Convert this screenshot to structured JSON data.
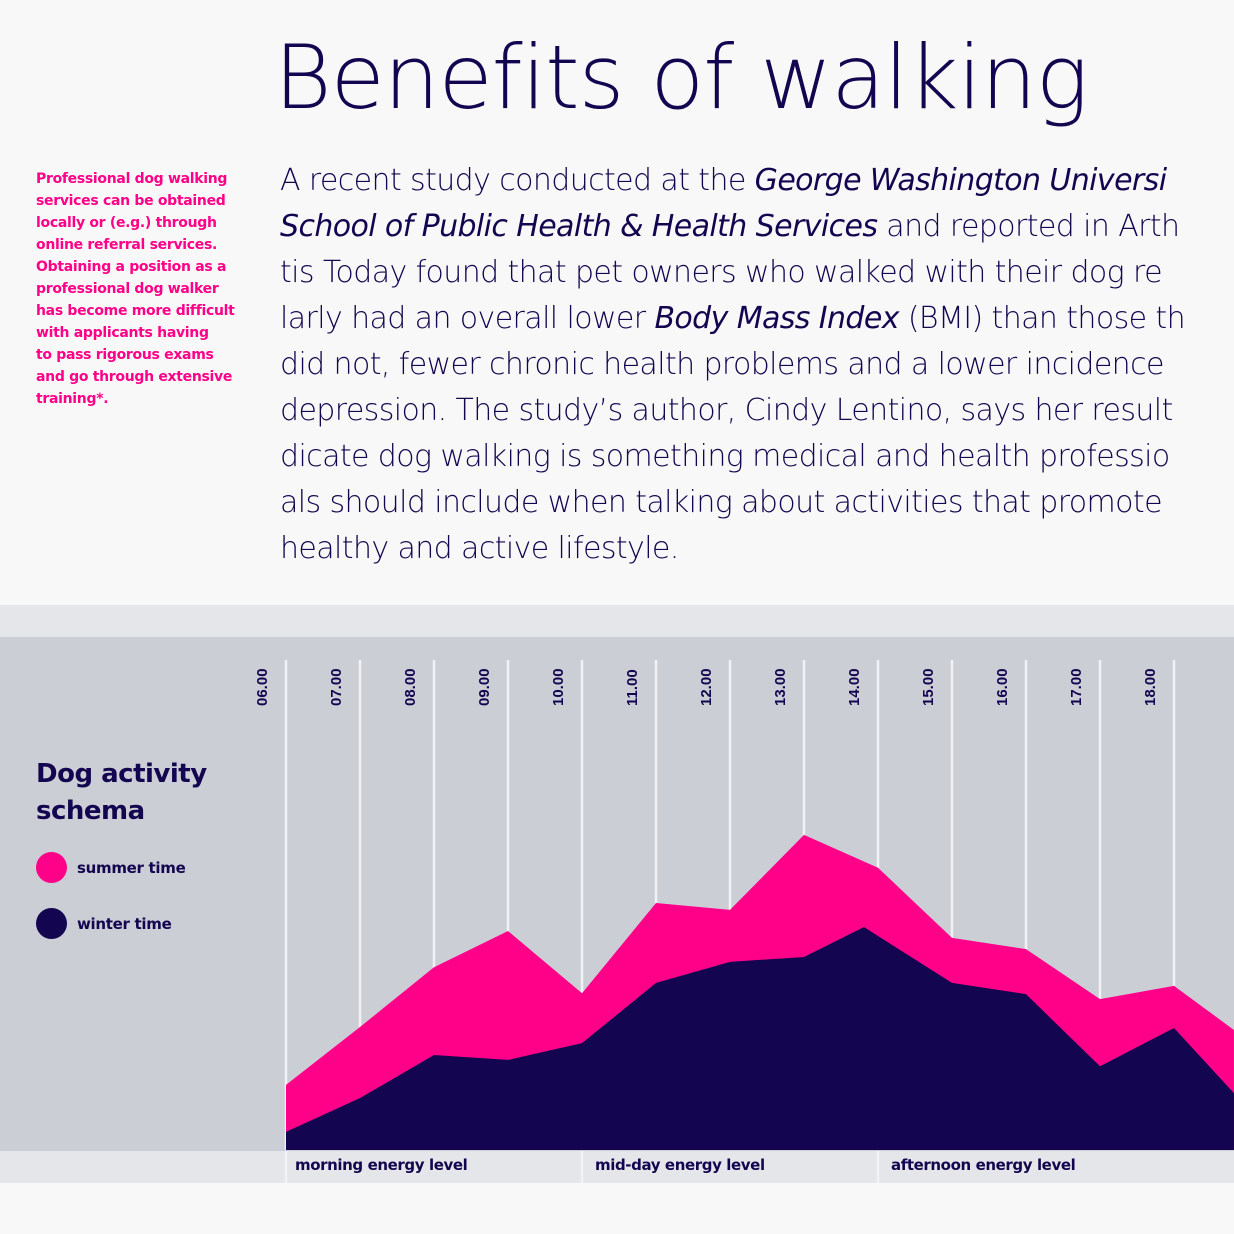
{
  "header": {
    "title": "Benefits of walking"
  },
  "sidenote": {
    "lines": [
      "Professional dog walking",
      "services can be obtained",
      "locally or (e.g.) through",
      "online referral services.",
      "Obtaining a position as a",
      "professional dog walker",
      "has become more difficult",
      "with applicants having",
      "to pass rigorous exams",
      "and go through extensive",
      "training*."
    ]
  },
  "article": {
    "lines": [
      [
        {
          "t": "A recent study conducted at the ",
          "i": false
        },
        {
          "t": "George Washington Universi",
          "i": true
        }
      ],
      [
        {
          "t": "School of Public Health & Health Services",
          "i": true
        },
        {
          "t": " and reported in Arth",
          "i": false
        }
      ],
      [
        {
          "t": "tis Today found that pet owners who walked with their dog re",
          "i": false
        }
      ],
      [
        {
          "t": "larly had an overall lower ",
          "i": false
        },
        {
          "t": "Body Mass Index",
          "i": true
        },
        {
          "t": " (BMI) than those th",
          "i": false
        }
      ],
      [
        {
          "t": "did not, fewer chronic health problems and a lower incidence",
          "i": false
        }
      ],
      [
        {
          "t": "depression. The study’s author, Cindy Lentino, says her result",
          "i": false
        }
      ],
      [
        {
          "t": "dicate dog walking is something medical and health professio",
          "i": false
        }
      ],
      [
        {
          "t": "als should include when talking about activities that promote",
          "i": false
        }
      ],
      [
        {
          "t": "healthy and active lifestyle.",
          "i": false
        }
      ]
    ]
  },
  "colors": {
    "summer": "#ff0088",
    "winter": "#13054f",
    "text": "#13054f",
    "accent": "#ff0088",
    "gridline": "#f2f2f4"
  },
  "chart_data": {
    "type": "area",
    "title": "Dog activity schema",
    "xlabel": "",
    "ylabel": "",
    "x_unit": "hour of day",
    "xlim": [
      6,
      18.81
    ],
    "ylim": [
      0,
      100
    ],
    "y_scale_note": "relative activity level (unlabeled axis, estimated 0–100)",
    "x_ticks": [
      6,
      7,
      8,
      9,
      10,
      11,
      12,
      13,
      14,
      15,
      16,
      17,
      18
    ],
    "x_tick_labels": [
      "06.00",
      "07.00",
      "08.00",
      "09.00",
      "10.00",
      "11.00",
      "12.00",
      "13.00",
      "14.00",
      "15.00",
      "16.00",
      "17.00",
      "18.00"
    ],
    "grid": "vertical",
    "legend": {
      "placement": "left",
      "entries": [
        "summer time",
        "winter time"
      ]
    },
    "series": [
      {
        "name": "summer time",
        "color": "#ff0088",
        "points": [
          [
            6,
            13.3
          ],
          [
            7,
            25.1
          ],
          [
            8,
            37.3
          ],
          [
            9,
            44.7
          ],
          [
            10,
            32.0
          ],
          [
            11,
            50.4
          ],
          [
            12,
            49.0
          ],
          [
            13,
            64.3
          ],
          [
            14,
            57.6
          ],
          [
            15,
            43.3
          ],
          [
            16,
            41.0
          ],
          [
            17,
            30.8
          ],
          [
            18,
            33.5
          ],
          [
            18.81,
            24.5
          ]
        ]
      },
      {
        "name": "winter time",
        "color": "#13054f",
        "points": [
          [
            6,
            3.7
          ],
          [
            7,
            10.6
          ],
          [
            8,
            19.4
          ],
          [
            9,
            18.4
          ],
          [
            10,
            21.8
          ],
          [
            11,
            34.1
          ],
          [
            12,
            38.4
          ],
          [
            13,
            39.4
          ],
          [
            13.81,
            45.5
          ],
          [
            15,
            34.1
          ],
          [
            16,
            31.8
          ],
          [
            17,
            17.1
          ],
          [
            18,
            24.9
          ],
          [
            18.81,
            11.6
          ]
        ]
      }
    ],
    "periods": [
      {
        "label": "morning energy level",
        "from": 6,
        "to": 10
      },
      {
        "label": "mid-day energy level",
        "from": 10,
        "to": 14
      },
      {
        "label": "afternoon energy level",
        "from": 14,
        "to": 18.81
      }
    ]
  }
}
